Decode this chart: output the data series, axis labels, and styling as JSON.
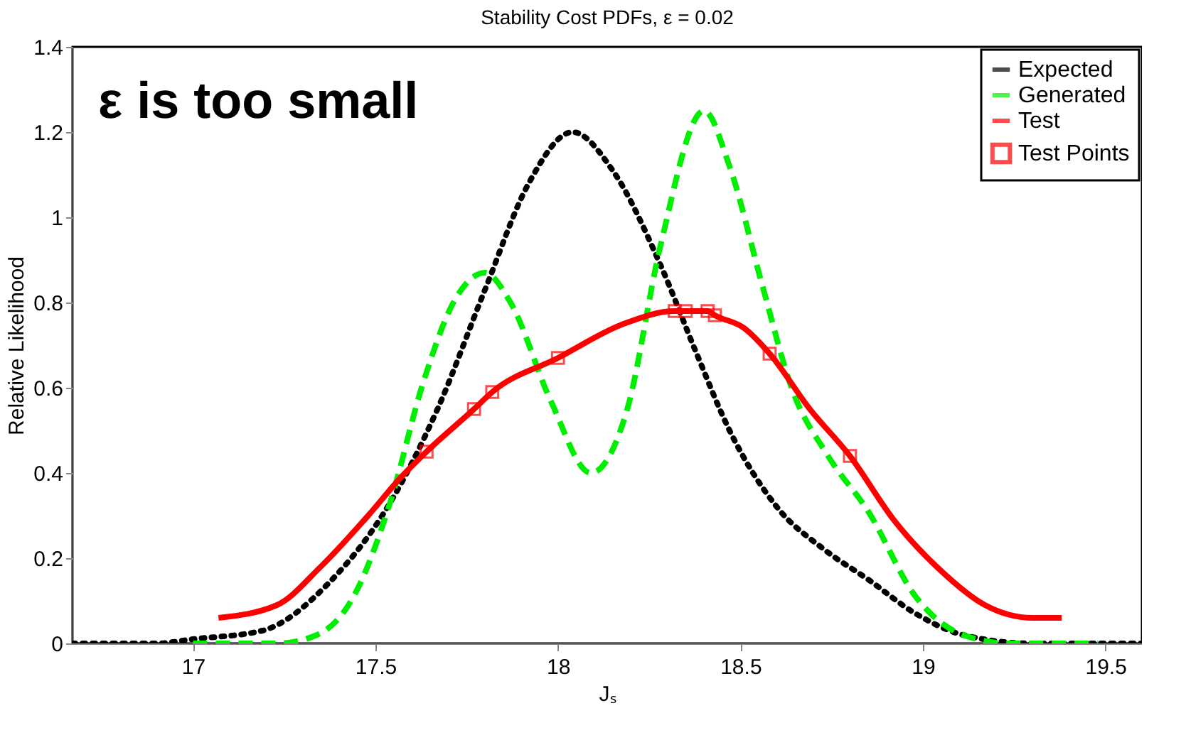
{
  "chart_data": {
    "type": "line",
    "title": "Stability Cost PDFs, ε = 0.02",
    "xlabel": "Jₛ",
    "ylabel": "Relative Likelihood",
    "annotations": [
      "ε is too small"
    ],
    "xlim": [
      16.67,
      19.6
    ],
    "xticks": [
      17,
      17.5,
      18,
      18.5,
      19,
      19.5
    ],
    "ylim": [
      0,
      1.4
    ],
    "yticks": [
      0,
      0.2,
      0.4,
      0.6,
      0.8,
      1,
      1.2,
      1.4
    ],
    "grid": false,
    "legend": "top right",
    "series": [
      {
        "name": "Expected",
        "color": "#000000",
        "line_style": "dotted",
        "x": [
          16.67,
          16.9,
          17.0,
          17.19,
          17.37,
          17.54,
          17.67,
          17.8,
          17.92,
          18.04,
          18.15,
          18.28,
          18.38,
          18.47,
          18.6,
          18.73,
          18.85,
          18.98,
          19.11,
          19.3,
          19.6
        ],
        "values": [
          0,
          0,
          0.01,
          0.03,
          0.14,
          0.33,
          0.55,
          0.83,
          1.08,
          1.2,
          1.11,
          0.89,
          0.68,
          0.5,
          0.32,
          0.22,
          0.15,
          0.07,
          0.02,
          0,
          0
        ]
      },
      {
        "name": "Generated",
        "color": "#00ee00",
        "line_style": "dashed",
        "x": [
          17.0,
          17.23,
          17.34,
          17.44,
          17.54,
          17.63,
          17.72,
          17.8,
          17.87,
          17.98,
          18.09,
          18.19,
          18.28,
          18.4,
          18.47,
          18.56,
          18.64,
          18.74,
          18.85,
          18.98,
          19.11,
          19.24,
          19.48
        ],
        "values": [
          0,
          0,
          0.02,
          0.11,
          0.33,
          0.61,
          0.81,
          0.87,
          0.8,
          0.57,
          0.4,
          0.55,
          0.93,
          1.25,
          1.12,
          0.84,
          0.6,
          0.44,
          0.31,
          0.11,
          0.02,
          0,
          0
        ]
      },
      {
        "name": "Test",
        "color": "#ff0000",
        "line_style": "solid",
        "x": [
          17.07,
          17.23,
          17.35,
          17.48,
          17.57,
          17.64,
          17.77,
          17.82,
          18.0,
          18.18,
          18.32,
          18.35,
          18.41,
          18.43,
          18.51,
          18.58,
          18.69,
          18.8,
          18.92,
          19.05,
          19.17,
          19.3,
          19.38
        ],
        "values": [
          0.06,
          0.09,
          0.18,
          0.3,
          0.39,
          0.45,
          0.55,
          0.59,
          0.67,
          0.75,
          0.78,
          0.78,
          0.78,
          0.77,
          0.74,
          0.68,
          0.55,
          0.44,
          0.29,
          0.17,
          0.09,
          0.06,
          0.06
        ]
      },
      {
        "name": "Test Points",
        "color": "#ff0000",
        "type": "scatter",
        "marker": "square",
        "x": [
          17.64,
          17.77,
          17.82,
          18.0,
          18.32,
          18.35,
          18.41,
          18.43,
          18.58,
          18.8
        ],
        "values": [
          0.45,
          0.55,
          0.59,
          0.67,
          0.78,
          0.78,
          0.78,
          0.77,
          0.68,
          0.44
        ]
      }
    ]
  }
}
